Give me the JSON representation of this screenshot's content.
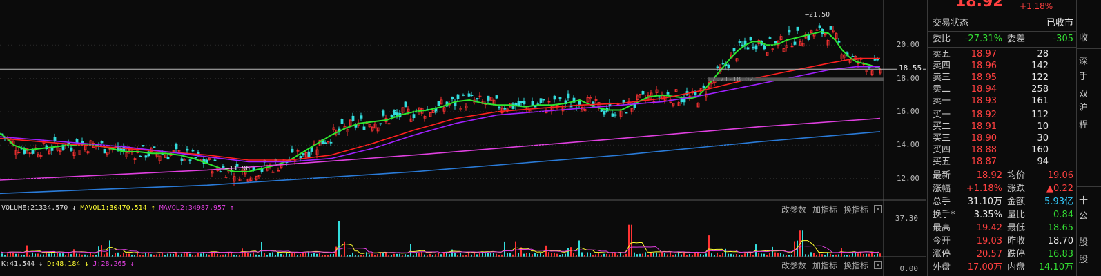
{
  "quote": {
    "price": "18.92",
    "change_pct": "+1.18%"
  },
  "chart_data": [
    {
      "type": "line",
      "name": "price-chart",
      "title": "",
      "ylim": [
        10.7,
        22.7
      ],
      "y_ticks": [
        "20.00",
        "18.00",
        "16.00",
        "14.00",
        "12.00"
      ],
      "current_price_label": "18.55",
      "annotations": {
        "high": "21.50",
        "low": "11.96",
        "range": "17.71-18.02"
      },
      "x_index_range": [
        0,
        319
      ],
      "series": [
        {
          "key": "ma5",
          "color": "#2ee62e",
          "x": [
            0,
            10,
            20,
            40,
            60,
            80,
            100,
            120,
            140,
            160,
            180,
            200,
            220,
            240,
            260,
            280,
            300,
            320,
            340,
            360,
            380,
            400,
            420,
            440,
            460,
            480,
            500,
            520,
            540,
            560,
            580,
            600,
            620,
            640,
            660,
            680,
            700,
            720,
            740,
            760,
            780,
            800,
            820,
            840,
            860,
            880,
            900,
            920,
            940,
            960,
            980,
            1000,
            1010,
            1020,
            1030,
            1040,
            1050,
            1060,
            1070,
            1080,
            1090,
            1100,
            1110,
            1120,
            1130,
            1140,
            1150,
            1160,
            1170,
            1180,
            1190,
            1200,
            1210,
            1220,
            1230,
            1240,
            1250,
            1260,
            1275
          ],
          "y": [
            14.7,
            14.4,
            14.0,
            13.7,
            13.8,
            13.9,
            14.0,
            14.0,
            14.0,
            13.8,
            13.6,
            13.6,
            13.5,
            13.5,
            13.4,
            13.2,
            12.9,
            12.6,
            12.4,
            12.4,
            12.6,
            12.8,
            13.1,
            13.6,
            14.1,
            14.6,
            15.0,
            15.3,
            15.4,
            15.5,
            15.8,
            16.0,
            16.1,
            16.3,
            16.6,
            16.7,
            16.5,
            16.4,
            16.4,
            16.3,
            16.4,
            16.4,
            16.5,
            16.7,
            16.3,
            16.1,
            16.1,
            16.5,
            16.9,
            17.0,
            16.9,
            16.8,
            16.9,
            17.3,
            17.8,
            18.3,
            18.8,
            19.3,
            19.7,
            20.0,
            20.2,
            20.2,
            20.0,
            20.0,
            20.1,
            20.3,
            20.4,
            20.5,
            20.6,
            20.7,
            20.8,
            20.7,
            20.3,
            19.7,
            19.3,
            19.0,
            18.9,
            18.8,
            18.6
          ]
        },
        {
          "key": "ma10",
          "color": "#ff2020",
          "x": [
            0,
            60,
            120,
            180,
            240,
            300,
            360,
            420,
            480,
            540,
            600,
            660,
            720,
            780,
            840,
            900,
            960,
            1020,
            1080,
            1140,
            1200,
            1240,
            1275
          ],
          "y": [
            14.4,
            14.2,
            14.0,
            13.8,
            13.6,
            13.4,
            13.1,
            13.1,
            13.4,
            14.1,
            14.9,
            15.6,
            16.0,
            16.2,
            16.4,
            16.5,
            16.8,
            17.3,
            17.9,
            18.4,
            18.9,
            19.2,
            19.2
          ]
        },
        {
          "key": "ma20",
          "color": "#a020ff",
          "x": [
            0,
            60,
            120,
            180,
            240,
            300,
            360,
            420,
            480,
            540,
            600,
            660,
            720,
            780,
            840,
            900,
            960,
            1020,
            1080,
            1140,
            1200,
            1240,
            1275
          ],
          "y": [
            14.5,
            14.3,
            14.1,
            13.9,
            13.6,
            13.3,
            13.0,
            13.0,
            13.2,
            13.8,
            14.6,
            15.3,
            15.8,
            16.0,
            16.2,
            16.4,
            16.6,
            17.0,
            17.5,
            18.0,
            18.5,
            18.7,
            18.7
          ]
        },
        {
          "key": "ma60",
          "color": "#e040e0",
          "x": [
            0,
            300,
            600,
            900,
            1100,
            1275
          ],
          "y": [
            11.9,
            12.5,
            13.4,
            14.4,
            15.1,
            15.6
          ]
        },
        {
          "key": "ma120",
          "color": "#2a7bd8",
          "x": [
            0,
            300,
            600,
            900,
            1100,
            1275
          ],
          "y": [
            11.1,
            11.6,
            12.4,
            13.4,
            14.2,
            14.8
          ]
        }
      ]
    },
    {
      "type": "bar",
      "name": "volume-chart",
      "ylim": [
        0,
        37.3
      ],
      "y_ticks": [
        "37.30",
        "0.00"
      ],
      "peaks": [
        {
          "x": 490,
          "v": 30
        },
        {
          "x": 912,
          "v": 27
        },
        {
          "x": 1160,
          "v": 22
        },
        {
          "x": 1025,
          "v": 18
        }
      ]
    }
  ],
  "volume_legend": [
    {
      "text": "VOLUME:21334.570",
      "color": "#e0e0e0",
      "arrow": "↓",
      "arrow_color": "#e0e0e0"
    },
    {
      "text": "MAVOL1:30470.514",
      "color": "#ffff33",
      "arrow": "↑",
      "arrow_color": "#ffff33"
    },
    {
      "text": "MAVOL2:34987.957",
      "color": "#e040e0",
      "arrow": "↑",
      "arrow_color": "#e040e0"
    }
  ],
  "kdj_legend": [
    {
      "text": "K:41.544",
      "color": "#e0e0e0",
      "arrow": "↓",
      "arrow_color": "#e0e0e0"
    },
    {
      "text": "D:48.184",
      "color": "#ffff33",
      "arrow": "↓",
      "arrow_color": "#ffff33"
    },
    {
      "text": "J:28.265",
      "color": "#e040e0",
      "arrow": "↓",
      "arrow_color": "#e040e0"
    }
  ],
  "toolbar": {
    "change_params": "改参数",
    "add_indicator": "加指标",
    "switch_indicator": "换指标",
    "close": "✕"
  },
  "panel": {
    "trade_status_label": "交易状态",
    "trade_status_value": "已收市",
    "weibi_label": "委比",
    "weibi_value": "-27.31%",
    "weicha_label": "委差",
    "weicha_value": "-305",
    "asks": [
      {
        "label": "卖五",
        "price": "18.97",
        "vol": "28"
      },
      {
        "label": "卖四",
        "price": "18.96",
        "vol": "142"
      },
      {
        "label": "卖三",
        "price": "18.95",
        "vol": "122"
      },
      {
        "label": "卖二",
        "price": "18.94",
        "vol": "258"
      },
      {
        "label": "卖一",
        "price": "18.93",
        "vol": "161"
      }
    ],
    "bids": [
      {
        "label": "买一",
        "price": "18.92",
        "vol": "112"
      },
      {
        "label": "买二",
        "price": "18.91",
        "vol": "10"
      },
      {
        "label": "买三",
        "price": "18.90",
        "vol": "30"
      },
      {
        "label": "买四",
        "price": "18.88",
        "vol": "160"
      },
      {
        "label": "买五",
        "price": "18.87",
        "vol": "94"
      }
    ],
    "stats": [
      {
        "l1": "最新",
        "v1": "18.92",
        "c1": "#ff4040",
        "l2": "均价",
        "v2": "19.06",
        "c2": "#ff4040"
      },
      {
        "l1": "涨幅",
        "v1": "+1.18%",
        "c1": "#ff4040",
        "l2": "涨跌",
        "v2": "▲0.22",
        "c2": "#ff4040"
      },
      {
        "l1": "总手",
        "v1": "31.10万",
        "c1": "#e6e6e6",
        "l2": "金额",
        "v2": "5.93亿",
        "c2": "#33ccff"
      },
      {
        "l1": "换手*",
        "v1": "3.35%",
        "c1": "#e6e6e6",
        "l2": "量比",
        "v2": "0.84",
        "c2": "#33dd33"
      },
      {
        "l1": "最高",
        "v1": "19.42",
        "c1": "#ff4040",
        "l2": "最低",
        "v2": "18.65",
        "c2": "#33dd33"
      },
      {
        "l1": "今开",
        "v1": "19.03",
        "c1": "#ff4040",
        "l2": "昨收",
        "v2": "18.70",
        "c2": "#e6e6e6"
      },
      {
        "l1": "涨停",
        "v1": "20.57",
        "c1": "#ff4040",
        "l2": "跌停",
        "v2": "16.83",
        "c2": "#33dd33"
      },
      {
        "l1": "外盘",
        "v1": "17.00万",
        "c1": "#ff4040",
        "l2": "内盘",
        "v2": "14.10万",
        "c2": "#33dd33"
      }
    ]
  },
  "edge_chars": [
    "收",
    "深",
    "手",
    "双",
    "沪",
    "程",
    "十",
    "公",
    "股",
    "股"
  ],
  "colors": {
    "up": "#ff3333",
    "down": "#33dddd",
    "bg": "#0b0b0b"
  }
}
